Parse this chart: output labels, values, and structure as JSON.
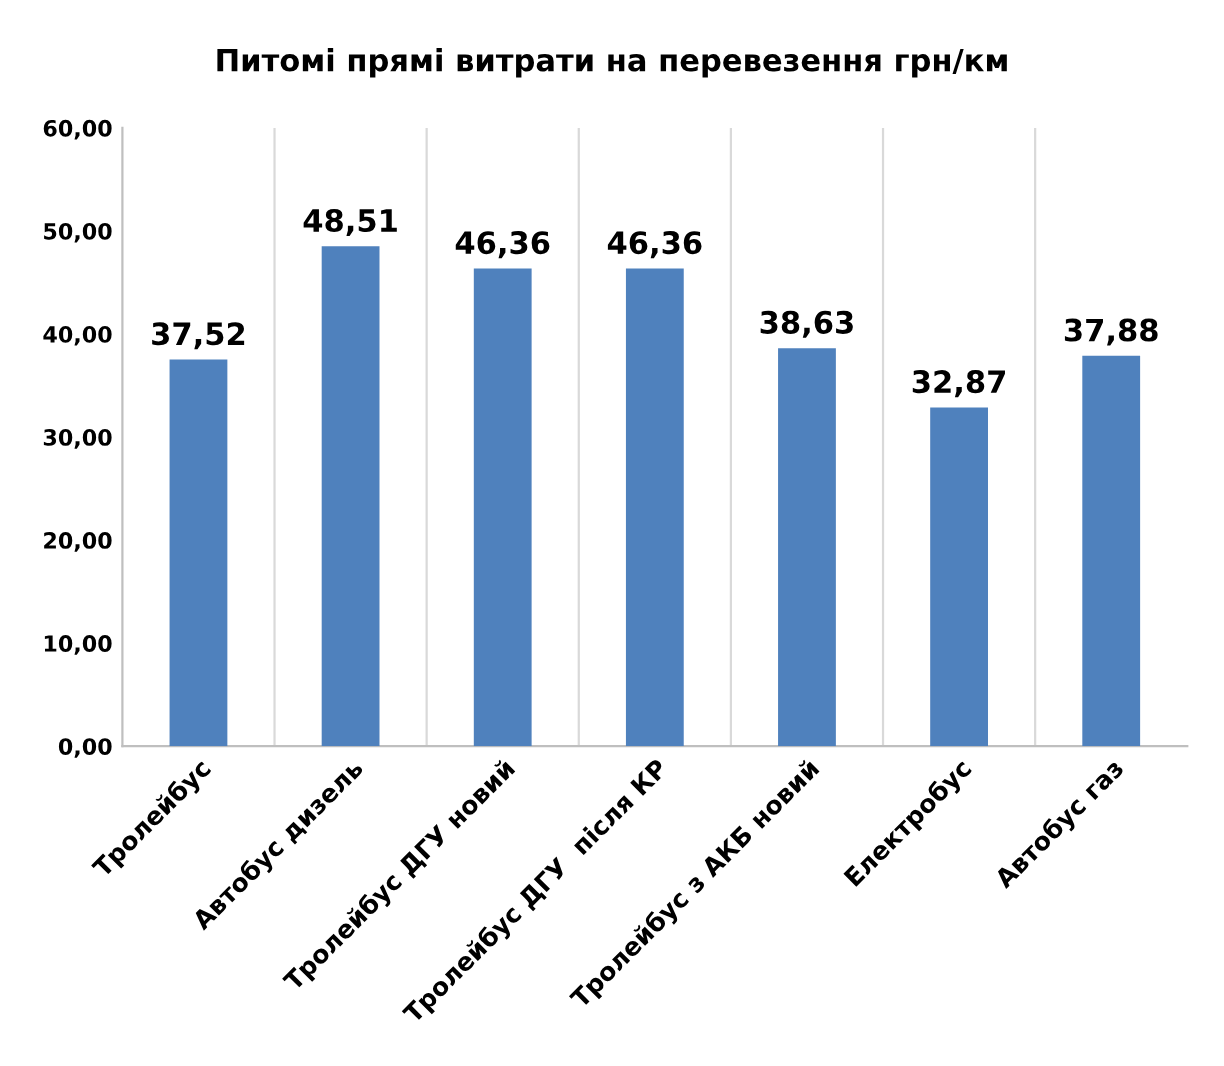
{
  "chart_data": {
    "type": "bar",
    "title": "Питомі прямі витрати на перевезення грн/км",
    "categories": [
      "Тролейбус",
      "Автобус дизель",
      "Тролейбус ДГУ новий",
      "Тролейбус ДГУ  після КР",
      "Тролейбус з АКБ новий",
      "Електробус",
      "Автобус газ"
    ],
    "values": [
      37.52,
      48.51,
      46.36,
      46.36,
      38.63,
      32.87,
      37.88
    ],
    "value_labels": [
      "37,52",
      "48,51",
      "46,36",
      "46,36",
      "38,63",
      "32,87",
      "37,88"
    ],
    "color": "#4f81bd",
    "ylim": [
      0,
      60
    ],
    "yticks": [
      {
        "value": 0,
        "label": "0,00"
      },
      {
        "value": 10,
        "label": "10,00"
      },
      {
        "value": 20,
        "label": "20,00"
      },
      {
        "value": 30,
        "label": "30,00"
      },
      {
        "value": 40,
        "label": "40,00"
      },
      {
        "value": 50,
        "label": "50,00"
      },
      {
        "value": 60,
        "label": "60,00"
      }
    ],
    "grid": "x"
  }
}
